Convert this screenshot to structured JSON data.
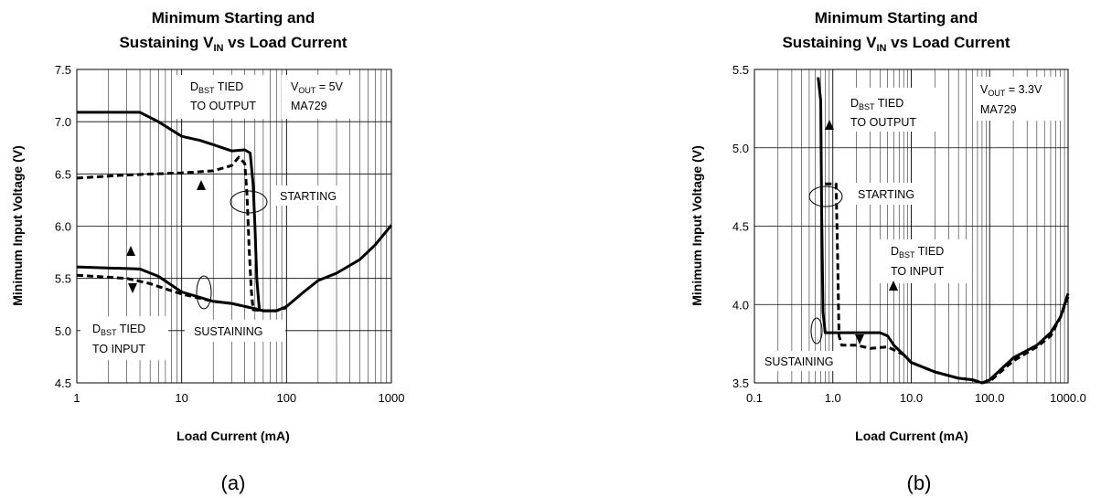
{
  "chart_data": [
    {
      "type": "line",
      "panel_caption": "(a)",
      "title_line1": "Minimum Starting and",
      "title_line2_prefix": "Sustaining V",
      "title_line2_sub": "IN",
      "title_line2_suffix": " vs Load Current",
      "xlabel": "Load Current (mA)",
      "ylabel": "Minimum Input Voltage (V)",
      "xscale": "log",
      "xlim": [
        1,
        1000
      ],
      "ylim": [
        4.5,
        7.5
      ],
      "x_ticks": [
        1,
        10,
        100,
        1000
      ],
      "x_tick_labels": [
        "1",
        "10",
        "100",
        "1000"
      ],
      "y_ticks": [
        4.5,
        5.0,
        5.5,
        6.0,
        6.5,
        7.0,
        7.5
      ],
      "y_tick_labels": [
        "4.5",
        "5.0",
        "5.5",
        "6.0",
        "6.5",
        "7.0",
        "7.5"
      ],
      "grid": true,
      "series": [
        {
          "style": "solid",
          "points": [
            [
              1,
              7.09
            ],
            [
              4,
              7.09
            ],
            [
              6,
              7.0
            ],
            [
              10,
              6.86
            ],
            [
              15,
              6.82
            ],
            [
              20,
              6.78
            ],
            [
              30,
              6.72
            ],
            [
              40,
              6.73
            ],
            [
              45,
              6.7
            ],
            [
              48,
              6.4
            ],
            [
              50,
              6.0
            ],
            [
              52,
              5.5
            ],
            [
              55,
              5.2
            ],
            [
              60,
              5.19
            ],
            [
              80,
              5.19
            ],
            [
              100,
              5.23
            ],
            [
              150,
              5.38
            ],
            [
              200,
              5.48
            ],
            [
              300,
              5.55
            ],
            [
              500,
              5.68
            ],
            [
              700,
              5.82
            ],
            [
              1000,
              6.01
            ]
          ]
        },
        {
          "style": "dashed",
          "points": [
            [
              1,
              6.46
            ],
            [
              3,
              6.49
            ],
            [
              10,
              6.51
            ],
            [
              20,
              6.53
            ],
            [
              30,
              6.58
            ],
            [
              35,
              6.66
            ],
            [
              40,
              6.6
            ],
            [
              42,
              6.3
            ],
            [
              44,
              5.8
            ],
            [
              46,
              5.4
            ],
            [
              48,
              5.2
            ],
            [
              60,
              5.19
            ],
            [
              80,
              5.19
            ],
            [
              100,
              5.22
            ]
          ]
        },
        {
          "style": "solid",
          "points": [
            [
              1,
              5.61
            ],
            [
              4,
              5.59
            ],
            [
              6,
              5.52
            ],
            [
              10,
              5.37
            ],
            [
              20,
              5.28
            ],
            [
              30,
              5.26
            ],
            [
              50,
              5.21
            ],
            [
              60,
              5.19
            ],
            [
              80,
              5.19
            ]
          ]
        },
        {
          "style": "dashed",
          "points": [
            [
              1,
              5.53
            ],
            [
              3,
              5.5
            ],
            [
              5,
              5.45
            ],
            [
              7,
              5.4
            ],
            [
              10,
              5.35
            ],
            [
              20,
              5.28
            ],
            [
              30,
              5.26
            ],
            [
              50,
              5.21
            ],
            [
              60,
              5.19
            ]
          ]
        }
      ],
      "annotations": [
        {
          "kind": "sub",
          "text": "D",
          "sub": "BST",
          "after": " TIED",
          "line2": "TO OUTPUT"
        },
        {
          "kind": "sub",
          "text": "V",
          "sub": "OUT",
          "after": " = 5V",
          "line2": "MA729"
        },
        {
          "kind": "plain",
          "text": "STARTING"
        },
        {
          "kind": "plain",
          "text": "SUSTAINING"
        },
        {
          "kind": "sub",
          "text": "D",
          "sub": "BST",
          "after": " TIED",
          "line2": "TO INPUT"
        }
      ]
    },
    {
      "type": "line",
      "panel_caption": "(b)",
      "title_line1": "Minimum Starting and",
      "title_line2_prefix": "Sustaining V",
      "title_line2_sub": "IN",
      "title_line2_suffix": " vs Load Current",
      "xlabel": "Load Current (mA)",
      "ylabel": "Minimum Input Voltage (V)",
      "xscale": "log",
      "xlim": [
        0.1,
        1000
      ],
      "ylim": [
        3.5,
        5.5
      ],
      "x_ticks": [
        0.1,
        1,
        10,
        100,
        1000
      ],
      "x_tick_labels": [
        "0.1",
        "1.0",
        "10.0",
        "100.0",
        "1000.0"
      ],
      "y_ticks": [
        3.5,
        4.0,
        4.5,
        5.0,
        5.5
      ],
      "y_tick_labels": [
        "3.5",
        "4.0",
        "4.5",
        "5.0",
        "5.5"
      ],
      "grid": true,
      "series": [
        {
          "style": "solid",
          "points": [
            [
              0.65,
              5.45
            ],
            [
              0.7,
              5.3
            ],
            [
              0.72,
              4.6
            ],
            [
              0.75,
              3.95
            ],
            [
              0.8,
              3.82
            ],
            [
              1.5,
              3.82
            ],
            [
              4,
              3.82
            ],
            [
              5,
              3.8
            ],
            [
              6,
              3.74
            ],
            [
              8,
              3.68
            ],
            [
              10,
              3.63
            ],
            [
              20,
              3.57
            ],
            [
              40,
              3.53
            ],
            [
              60,
              3.52
            ],
            [
              80,
              3.5
            ],
            [
              100,
              3.52
            ],
            [
              200,
              3.66
            ],
            [
              400,
              3.74
            ],
            [
              600,
              3.82
            ],
            [
              800,
              3.92
            ],
            [
              1000,
              4.07
            ]
          ]
        },
        {
          "style": "dashed",
          "points": [
            [
              0.8,
              4.77
            ],
            [
              1.1,
              4.77
            ],
            [
              1.15,
              4.3
            ],
            [
              1.2,
              3.8
            ],
            [
              1.3,
              3.74
            ],
            [
              2,
              3.74
            ],
            [
              3,
              3.72
            ],
            [
              5,
              3.73
            ],
            [
              8,
              3.68
            ],
            [
              10,
              3.63
            ],
            [
              20,
              3.57
            ],
            [
              40,
              3.53
            ],
            [
              60,
              3.52
            ],
            [
              80,
              3.5
            ],
            [
              100,
              3.51
            ],
            [
              200,
              3.64
            ],
            [
              400,
              3.73
            ],
            [
              600,
              3.8
            ],
            [
              800,
              3.92
            ],
            [
              1000,
              4.05
            ]
          ]
        }
      ],
      "annotations": [
        {
          "kind": "sub",
          "text": "D",
          "sub": "BST",
          "after": " TIED",
          "line2": "TO OUTPUT"
        },
        {
          "kind": "sub",
          "text": "V",
          "sub": "OUT",
          "after": " = 3.3V",
          "line2": "MA729"
        },
        {
          "kind": "plain",
          "text": "STARTING"
        },
        {
          "kind": "sub",
          "text": "D",
          "sub": "BST",
          "after": " TIED",
          "line2": "TO INPUT"
        },
        {
          "kind": "plain",
          "text": "SUSTAINING"
        }
      ]
    }
  ]
}
